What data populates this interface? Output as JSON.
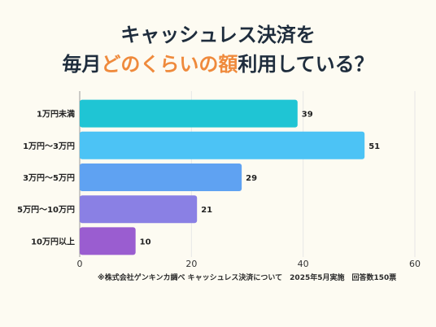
{
  "title": {
    "line1": "キャッシュレス決済を",
    "line2_prefix": "毎月",
    "line2_accent": "どのくらいの額",
    "line2_suffix": "利用している？"
  },
  "footnote": "※株式会社ゲンキンカ調べ キャッシュレス決済について　2025年5月実施　回答数150票",
  "colors": {
    "background": "#fdfbf2",
    "title": "#1f2d3d",
    "accent": "#ef8a3c",
    "grid": "#e6e6e6"
  },
  "chart_data": {
    "type": "bar",
    "orientation": "horizontal",
    "categories": [
      "1万円未満",
      "1万円〜3万円",
      "3万円〜5万円",
      "5万円〜10万円",
      "10万円以上"
    ],
    "values": [
      39,
      51,
      29,
      21,
      10
    ],
    "bar_colors": [
      "#1fc5d4",
      "#4cc3f5",
      "#5fa2f2",
      "#8a80e4",
      "#9a5dd0"
    ],
    "xlim": [
      0,
      60
    ],
    "xticks": [
      0,
      20,
      40,
      60
    ],
    "grid": true
  }
}
